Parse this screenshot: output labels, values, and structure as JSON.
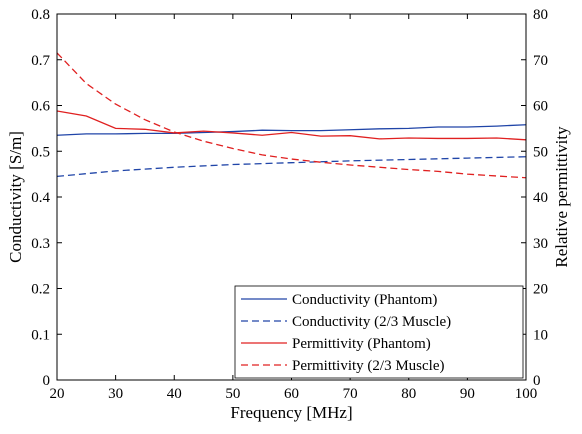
{
  "chart_data": {
    "type": "line",
    "xlabel": "Frequency  [MHz]",
    "ylabel_left": "Conductivity [S/m]",
    "ylabel_right": "Relative permittivity",
    "xlim": [
      20,
      100
    ],
    "ylim_left": [
      0,
      0.8
    ],
    "ylim_right": [
      0,
      80
    ],
    "x_ticks": [
      20,
      30,
      40,
      50,
      60,
      70,
      80,
      90,
      100
    ],
    "y_left_ticks": [
      0,
      0.1,
      0.2,
      0.3,
      0.4,
      0.5,
      0.6,
      0.7,
      0.8
    ],
    "y_left_tick_labels": [
      "0",
      "0.1",
      "0.2",
      "0.3",
      "0.4",
      "0.5",
      "0.6",
      "0.7",
      "0.8"
    ],
    "y_right_ticks": [
      0,
      10,
      20,
      30,
      40,
      50,
      60,
      70,
      80
    ],
    "grid": false,
    "legend_position": "bottom-right",
    "series": [
      {
        "name": "Conductivity (Phantom)",
        "axis": "left",
        "color": "#2045a8",
        "dash": "solid",
        "x": [
          20,
          25,
          30,
          35,
          40,
          45,
          50,
          55,
          60,
          65,
          70,
          75,
          80,
          85,
          90,
          95,
          100
        ],
        "y": [
          0.535,
          0.538,
          0.538,
          0.539,
          0.539,
          0.541,
          0.543,
          0.546,
          0.545,
          0.545,
          0.547,
          0.549,
          0.55,
          0.553,
          0.553,
          0.555,
          0.558
        ]
      },
      {
        "name": "Conductivity (2/3 Muscle)",
        "axis": "left",
        "color": "#2045a8",
        "dash": "dashed",
        "x": [
          20,
          30,
          40,
          50,
          60,
          70,
          80,
          90,
          100
        ],
        "y": [
          0.445,
          0.457,
          0.465,
          0.471,
          0.475,
          0.479,
          0.482,
          0.485,
          0.488
        ]
      },
      {
        "name": "Permittivity (Phantom)",
        "axis": "right",
        "color": "#e02020",
        "dash": "solid",
        "x": [
          20,
          25,
          30,
          35,
          40,
          45,
          50,
          55,
          60,
          65,
          70,
          75,
          80,
          85,
          90,
          95,
          100
        ],
        "y": [
          58.8,
          57.7,
          55.0,
          54.8,
          54.0,
          54.4,
          54.0,
          53.5,
          54.1,
          53.3,
          53.4,
          52.7,
          52.9,
          52.8,
          52.8,
          52.9,
          52.5
        ]
      },
      {
        "name": "Permittivity (2/3 Muscle)",
        "axis": "right",
        "color": "#e02020",
        "dash": "dashed",
        "x": [
          20,
          25,
          30,
          35,
          40,
          45,
          50,
          55,
          60,
          65,
          70,
          75,
          80,
          85,
          90,
          95,
          100
        ],
        "y": [
          71.5,
          64.8,
          60.3,
          56.9,
          54.2,
          52.2,
          50.6,
          49.2,
          48.3,
          47.6,
          47.0,
          46.5,
          46.0,
          45.6,
          45.0,
          44.6,
          44.2
        ]
      }
    ]
  }
}
